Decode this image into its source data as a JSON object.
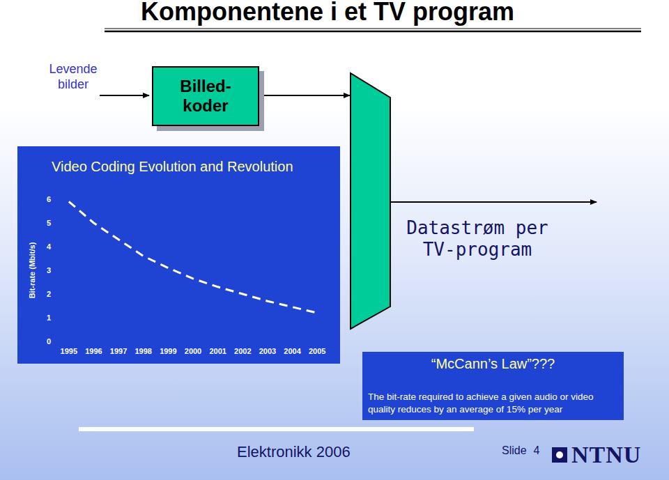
{
  "chart_data": {
    "type": "line",
    "title": "Video Coding Evolution and Revolution",
    "ylabel": "Bit-rate (Mbit/s)",
    "categories": [
      "1995",
      "1996",
      "1997",
      "1998",
      "1999",
      "2000",
      "2001",
      "2002",
      "2003",
      "2004",
      "2005"
    ],
    "values": [
      5.9,
      5.0,
      4.3,
      3.6,
      3.1,
      2.65,
      2.3,
      2.0,
      1.7,
      1.45,
      1.2
    ],
    "ylim": [
      0,
      6
    ],
    "yticks": [
      0,
      1,
      2,
      3,
      4,
      5,
      6
    ],
    "grid": false,
    "color": "#ffffcc",
    "line_style": "dashed"
  },
  "slide": {
    "title": "Komponentene i et TV program",
    "input": [
      "Levende",
      "bilder"
    ],
    "encoder": [
      "Billed-",
      "koder"
    ],
    "output": [
      "Datastrøm per",
      "TV-program"
    ],
    "law": {
      "title": "“McCann’s Law”???",
      "text": [
        "The bit-rate required to achieve a given audio or video",
        "quality reduces by an average of 15% per year"
      ]
    },
    "footer": "Elektronikk 2006",
    "slide_label": "Slide",
    "slide_number": 4,
    "logo": "NTNU"
  }
}
